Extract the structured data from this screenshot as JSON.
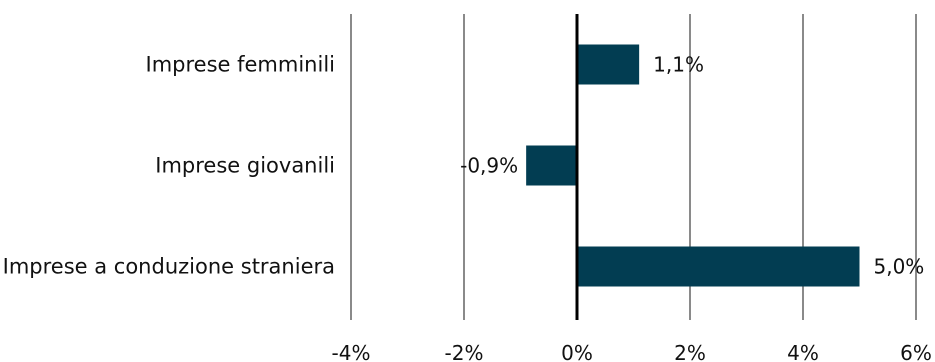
{
  "chart_data": {
    "type": "bar",
    "orientation": "horizontal",
    "categories": [
      "Imprese femminili",
      "Imprese giovanili",
      "Imprese a conduzione straniera"
    ],
    "values": [
      1.1,
      -0.9,
      5.0
    ],
    "value_labels": [
      "1,1%",
      "-0,9%",
      "5,0%"
    ],
    "xlim": [
      -4,
      6
    ],
    "xticks": [
      -4,
      -2,
      0,
      2,
      4,
      6
    ],
    "xtick_labels": [
      "-4%",
      "-2%",
      "0%",
      "2%",
      "4%",
      "6%"
    ],
    "grid": "vertical",
    "bar_color": "#023d52",
    "gridline_color": "#8a8a8a",
    "zero_line_color": "#000000",
    "title": "",
    "xlabel": "",
    "ylabel": ""
  }
}
